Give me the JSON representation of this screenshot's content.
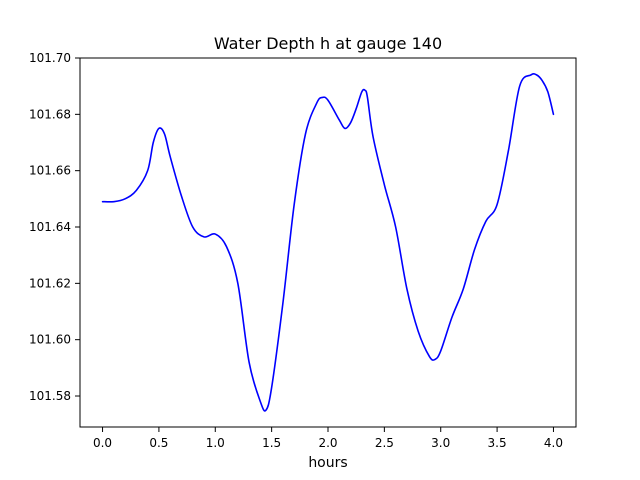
{
  "chart_data": {
    "type": "line",
    "title": "Water Depth h at gauge 140",
    "xlabel": "hours",
    "ylabel": "",
    "xlim": [
      -0.2,
      4.2
    ],
    "ylim": [
      101.569,
      101.7
    ],
    "x_ticks": [
      0.0,
      0.5,
      1.0,
      1.5,
      2.0,
      2.5,
      3.0,
      3.5,
      4.0
    ],
    "x_tick_labels": [
      "0.0",
      "0.5",
      "1.0",
      "1.5",
      "2.0",
      "2.5",
      "3.0",
      "3.5",
      "4.0"
    ],
    "y_ticks": [
      101.58,
      101.6,
      101.62,
      101.64,
      101.66,
      101.68,
      101.7
    ],
    "y_tick_labels": [
      "101.58",
      "101.60",
      "101.62",
      "101.64",
      "101.66",
      "101.68",
      "101.70"
    ],
    "grid": false,
    "legend": false,
    "series": [
      {
        "color": "#0000ff",
        "x": [
          0.0,
          0.1,
          0.2,
          0.3,
          0.4,
          0.45,
          0.5,
          0.55,
          0.6,
          0.7,
          0.8,
          0.9,
          1.0,
          1.1,
          1.2,
          1.3,
          1.4,
          1.45,
          1.5,
          1.6,
          1.7,
          1.8,
          1.9,
          1.95,
          2.0,
          2.1,
          2.15,
          2.2,
          2.25,
          2.3,
          2.33,
          2.35,
          2.4,
          2.5,
          2.6,
          2.7,
          2.8,
          2.9,
          2.95,
          3.0,
          3.1,
          3.2,
          3.3,
          3.4,
          3.5,
          3.6,
          3.7,
          3.8,
          3.85,
          3.9,
          3.95,
          4.0
        ],
        "y": [
          101.649,
          101.649,
          101.65,
          101.653,
          101.66,
          101.67,
          101.675,
          101.673,
          101.665,
          101.651,
          101.64,
          101.6365,
          101.6375,
          101.633,
          101.62,
          101.592,
          101.578,
          101.575,
          101.583,
          101.613,
          101.648,
          101.673,
          101.684,
          101.686,
          101.685,
          101.678,
          101.675,
          101.677,
          101.682,
          101.688,
          101.6885,
          101.686,
          101.672,
          101.655,
          101.64,
          101.618,
          101.603,
          101.594,
          101.593,
          101.596,
          101.608,
          101.618,
          101.632,
          101.642,
          101.648,
          101.667,
          101.69,
          101.694,
          101.694,
          101.692,
          101.688,
          101.68
        ]
      }
    ]
  }
}
